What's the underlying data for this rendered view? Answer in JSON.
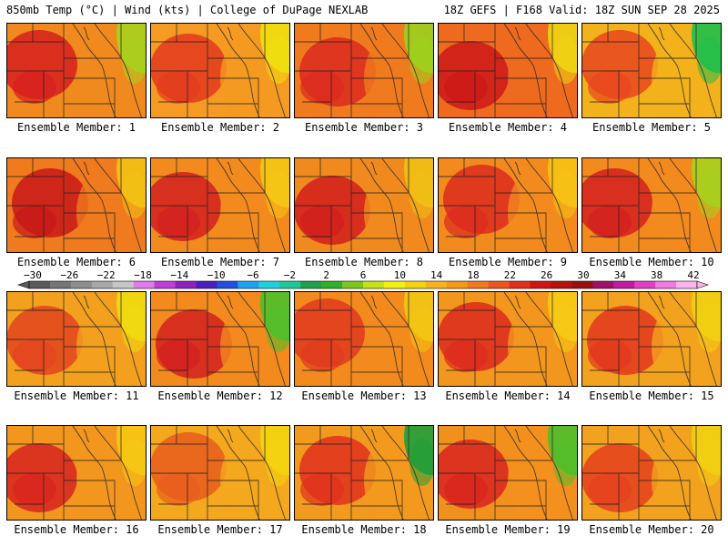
{
  "header": {
    "left": "850mb Temp (°C) | Wind (kts) | College of DuPage NEXLAB",
    "right": "18Z GEFS | F168 Valid: 18Z SUN SEP 28 2025"
  },
  "members": [
    {
      "label": "Ensemble Member: 1",
      "base": "#f08a1e",
      "hot": "#d71e1e",
      "cool": "#a8d21e"
    },
    {
      "label": "Ensemble Member: 2",
      "base": "#f59a22",
      "hot": "#e23a1e",
      "cool": "#f0e010"
    },
    {
      "label": "Ensemble Member: 3",
      "base": "#f07a1e",
      "hot": "#dc2a20",
      "cool": "#9bd21e"
    },
    {
      "label": "Ensemble Member: 4",
      "base": "#ee6a1e",
      "hot": "#cc1818",
      "cool": "#f0d612"
    },
    {
      "label": "Ensemble Member: 5",
      "base": "#f2b21c",
      "hot": "#e8461e",
      "cool": "#1fbf4a"
    },
    {
      "label": "Ensemble Member: 6",
      "base": "#f07a1e",
      "hot": "#c81818",
      "cool": "#f2c214"
    },
    {
      "label": "Ensemble Member: 7",
      "base": "#f28a1e",
      "hot": "#d42020",
      "cool": "#f4c814"
    },
    {
      "label": "Ensemble Member: 8",
      "base": "#f08a1e",
      "hot": "#d21c1c",
      "cool": "#f0c014"
    },
    {
      "label": "Ensemble Member: 9",
      "base": "#f28a1e",
      "hot": "#dc2a1e",
      "cool": "#f6c214"
    },
    {
      "label": "Ensemble Member: 10",
      "base": "#f28a1e",
      "hot": "#d41e1e",
      "cool": "#a6d21e"
    },
    {
      "label": "Ensemble Member: 11",
      "base": "#f2a01e",
      "hot": "#e2441e",
      "cool": "#f0dc10"
    },
    {
      "label": "Ensemble Member: 12",
      "base": "#f28a1e",
      "hot": "#d42020",
      "cool": "#4cbf2a"
    },
    {
      "label": "Ensemble Member: 13",
      "base": "#f28a1e",
      "hot": "#e03a1e",
      "cool": "#f2c614"
    },
    {
      "label": "Ensemble Member: 14",
      "base": "#f2961e",
      "hot": "#dc2a1e",
      "cool": "#f6cc14"
    },
    {
      "label": "Ensemble Member: 15",
      "base": "#f2a21e",
      "hot": "#e2361e",
      "cool": "#f2d012"
    },
    {
      "label": "Ensemble Member: 16",
      "base": "#f2961e",
      "hot": "#d82420",
      "cool": "#f6c814"
    },
    {
      "label": "Ensemble Member: 17",
      "base": "#f4a81e",
      "hot": "#e85c1e",
      "cool": "#f4d410"
    },
    {
      "label": "Ensemble Member: 18",
      "base": "#f29a1e",
      "hot": "#e0301e",
      "cool": "#1f9f3a"
    },
    {
      "label": "Ensemble Member: 19",
      "base": "#f2901e",
      "hot": "#d82420",
      "cool": "#4cbf2a"
    },
    {
      "label": "Ensemble Member: 20",
      "base": "#f2a21e",
      "hot": "#e4401e",
      "cool": "#f2d012"
    }
  ],
  "colorbar": {
    "ticks": [
      "−30",
      "−26",
      "−22",
      "−18",
      "−14",
      "−10",
      "−6",
      "−2",
      "2",
      "6",
      "10",
      "14",
      "18",
      "22",
      "26",
      "30",
      "34",
      "38",
      "42"
    ],
    "colors": [
      "#5a5a5a",
      "#767676",
      "#8e8e8e",
      "#a8a8a8",
      "#c6c6c6",
      "#e07ae8",
      "#c23cd8",
      "#9020c0",
      "#4a20c0",
      "#2050e0",
      "#20a0f0",
      "#20d0e0",
      "#1fc89a",
      "#1fa04a",
      "#2fb02a",
      "#7cc81e",
      "#c8e018",
      "#f6f010",
      "#f6d40c",
      "#f6b41c",
      "#f49818",
      "#f07a1e",
      "#ec561e",
      "#e2301e",
      "#d21414",
      "#b80f0f",
      "#981010",
      "#a0106a",
      "#c01aa0",
      "#e040c8",
      "#f07ae0",
      "#f8b4ee"
    ]
  }
}
